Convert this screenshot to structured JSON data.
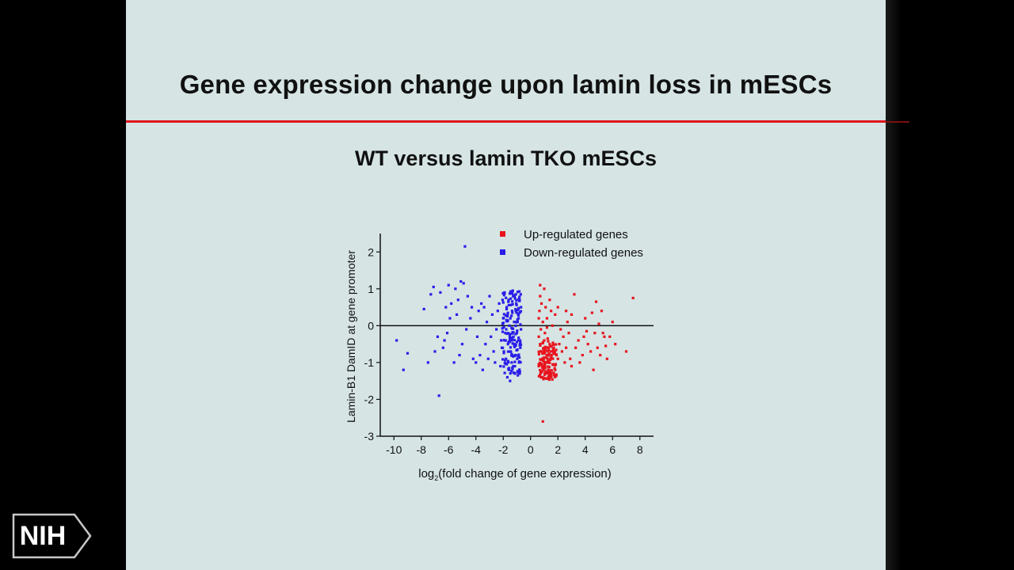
{
  "slide": {
    "title": "Gene expression change upon lamin loss in mESCs",
    "subtitle": "WT versus lamin TKO mESCs"
  },
  "logo": {
    "text": "NIH"
  },
  "chart_data": {
    "type": "scatter",
    "ylabel": "Lamin-B1 DamID at gene promoter",
    "xlabel_main": "log",
    "xlabel_sub": "2",
    "xlabel_rest": "(fold change of gene expression)",
    "xlim": [
      -11,
      9
    ],
    "ylim": [
      -3,
      2.5
    ],
    "xticks": [
      -10,
      -8,
      -6,
      -4,
      -2,
      0,
      2,
      4,
      6,
      8
    ],
    "yticks": [
      -3,
      -2,
      -1,
      0,
      1,
      2
    ],
    "legend_position": "top-right",
    "colors": {
      "up": "#e8141e",
      "down": "#2a1ee8"
    },
    "series": [
      {
        "name": "Up-regulated genes",
        "color_key": "up",
        "points": [
          [
            0.7,
            1.1
          ],
          [
            1.0,
            1.0
          ],
          [
            1.4,
            0.7
          ],
          [
            3.2,
            0.85
          ],
          [
            4.8,
            0.65
          ],
          [
            7.5,
            0.75
          ],
          [
            0.8,
            0.6
          ],
          [
            1.1,
            0.5
          ],
          [
            1.5,
            0.4
          ],
          [
            2.0,
            0.5
          ],
          [
            2.6,
            0.4
          ],
          [
            3.0,
            0.3
          ],
          [
            4.0,
            0.2
          ],
          [
            4.5,
            0.35
          ],
          [
            5.2,
            0.4
          ],
          [
            6.0,
            0.1
          ],
          [
            5.8,
            -0.3
          ],
          [
            7.0,
            -0.7
          ],
          [
            0.6,
            0.2
          ],
          [
            0.9,
            0.1
          ],
          [
            1.2,
            0.2
          ],
          [
            1.6,
            0.0
          ],
          [
            2.2,
            -0.1
          ],
          [
            2.8,
            -0.2
          ],
          [
            3.5,
            -0.4
          ],
          [
            4.2,
            -0.5
          ],
          [
            4.9,
            -0.6
          ],
          [
            5.5,
            -0.55
          ],
          [
            3.8,
            -0.8
          ],
          [
            4.6,
            -1.2
          ],
          [
            2.5,
            -1.0
          ],
          [
            3.0,
            -1.1
          ],
          [
            1.8,
            -1.2
          ],
          [
            1.3,
            -1.3
          ],
          [
            0.8,
            -1.4
          ],
          [
            0.9,
            -2.6
          ],
          [
            0.6,
            -0.3
          ],
          [
            0.7,
            -0.5
          ],
          [
            0.8,
            -0.7
          ],
          [
            0.9,
            -0.9
          ],
          [
            1.0,
            -0.4
          ],
          [
            1.1,
            -0.6
          ],
          [
            1.2,
            -0.8
          ],
          [
            1.3,
            -1.0
          ],
          [
            1.4,
            -0.5
          ],
          [
            1.5,
            -0.7
          ],
          [
            1.7,
            -0.6
          ],
          [
            1.9,
            -0.8
          ],
          [
            2.1,
            -0.5
          ],
          [
            2.3,
            -0.7
          ],
          [
            2.6,
            -0.6
          ],
          [
            3.3,
            -0.6
          ],
          [
            4.4,
            -0.7
          ],
          [
            5.1,
            -0.8
          ],
          [
            5.4,
            -0.3
          ],
          [
            4.7,
            -0.2
          ],
          [
            3.9,
            -0.3
          ],
          [
            0.65,
            0.4
          ],
          [
            0.75,
            -0.1
          ],
          [
            0.85,
            -1.1
          ],
          [
            0.95,
            -1.2
          ],
          [
            1.05,
            -0.2
          ],
          [
            1.25,
            -0.35
          ],
          [
            1.45,
            -0.9
          ],
          [
            1.65,
            -1.05
          ],
          [
            2.0,
            -0.9
          ],
          [
            2.4,
            -0.3
          ],
          [
            2.9,
            -0.9
          ],
          [
            3.6,
            -1.0
          ],
          [
            5.0,
            0.05
          ],
          [
            5.6,
            -0.9
          ],
          [
            6.2,
            -0.5
          ],
          [
            0.7,
            0.8
          ],
          [
            1.2,
            -0.05
          ],
          [
            1.8,
            0.3
          ],
          [
            2.7,
            0.1
          ],
          [
            4.1,
            -0.15
          ],
          [
            5.3,
            -0.2
          ]
        ]
      },
      {
        "name": "Down-regulated genes",
        "color_key": "down",
        "points": [
          [
            -4.8,
            2.15
          ],
          [
            -9.8,
            -0.4
          ],
          [
            -9.3,
            -1.2
          ],
          [
            -9.0,
            -0.75
          ],
          [
            -7.8,
            0.45
          ],
          [
            -7.0,
            -0.7
          ],
          [
            -6.7,
            -1.9
          ],
          [
            -6.3,
            -0.4
          ],
          [
            -6.0,
            1.1
          ],
          [
            -5.5,
            1.0
          ],
          [
            -5.1,
            1.2
          ],
          [
            -4.9,
            1.15
          ],
          [
            -6.6,
            0.9
          ],
          [
            -7.3,
            0.85
          ],
          [
            -7.1,
            1.05
          ],
          [
            -6.1,
            -0.2
          ],
          [
            -5.8,
            0.6
          ],
          [
            -5.4,
            0.3
          ],
          [
            -5.0,
            -0.5
          ],
          [
            -4.6,
            0.8
          ],
          [
            -4.2,
            -0.9
          ],
          [
            -3.8,
            0.4
          ],
          [
            -3.5,
            -1.2
          ],
          [
            -3.2,
            0.1
          ],
          [
            -2.9,
            -0.3
          ],
          [
            -2.6,
            -1.0
          ],
          [
            -2.3,
            0.6
          ],
          [
            -2.1,
            -0.6
          ],
          [
            -1.9,
            0.9
          ],
          [
            -1.7,
            -1.4
          ],
          [
            -1.5,
            -1.5
          ],
          [
            -1.3,
            0.95
          ],
          [
            -1.1,
            -0.8
          ],
          [
            -0.9,
            0.3
          ],
          [
            -0.8,
            -1.3
          ],
          [
            -0.7,
            0.5
          ],
          [
            -1.0,
            -0.2
          ],
          [
            -1.2,
            0.1
          ],
          [
            -1.4,
            -0.4
          ],
          [
            -1.6,
            0.7
          ],
          [
            -1.8,
            -0.9
          ],
          [
            -2.0,
            0.2
          ],
          [
            -2.2,
            -1.1
          ],
          [
            -2.4,
            0.4
          ],
          [
            -2.7,
            -0.7
          ],
          [
            -3.0,
            0.8
          ],
          [
            -3.3,
            -0.5
          ],
          [
            -3.6,
            0.6
          ],
          [
            -3.9,
            -0.3
          ],
          [
            -4.4,
            0.2
          ],
          [
            -4.0,
            -1.0
          ],
          [
            -5.2,
            -0.8
          ],
          [
            -5.6,
            -1.0
          ],
          [
            -6.4,
            -0.6
          ],
          [
            -6.8,
            -0.3
          ],
          [
            -7.5,
            -1.0
          ],
          [
            -5.9,
            0.2
          ],
          [
            -4.7,
            -0.1
          ],
          [
            -4.3,
            0.5
          ],
          [
            -3.7,
            -0.8
          ],
          [
            -0.7,
            -0.1
          ],
          [
            -0.75,
            -0.6
          ],
          [
            -0.8,
            0.7
          ],
          [
            -0.85,
            -1.0
          ],
          [
            -0.9,
            -0.4
          ],
          [
            -0.95,
            0.1
          ],
          [
            -1.05,
            0.6
          ],
          [
            -1.15,
            -1.1
          ],
          [
            -1.25,
            -0.3
          ],
          [
            -1.35,
            0.4
          ],
          [
            -1.45,
            -0.7
          ],
          [
            -1.55,
            0.0
          ],
          [
            -1.65,
            -0.5
          ],
          [
            -1.75,
            0.5
          ],
          [
            -1.85,
            -0.2
          ],
          [
            -1.95,
            -0.7
          ],
          [
            -2.05,
            0.7
          ],
          [
            -2.15,
            -0.4
          ],
          [
            -2.5,
            -0.1
          ],
          [
            -2.8,
            0.3
          ],
          [
            -3.1,
            -0.9
          ],
          [
            -3.4,
            0.5
          ],
          [
            -0.72,
            0.85
          ],
          [
            -0.78,
            -1.25
          ],
          [
            -0.88,
            0.2
          ],
          [
            -0.98,
            -0.9
          ],
          [
            -1.08,
            0.4
          ],
          [
            -1.18,
            -0.5
          ],
          [
            -1.28,
            0.8
          ],
          [
            -1.38,
            -1.0
          ],
          [
            -1.48,
            0.2
          ],
          [
            -1.58,
            -1.2
          ],
          [
            -1.68,
            0.3
          ],
          [
            -1.78,
            -0.1
          ],
          [
            -5.3,
            0.7
          ],
          [
            -6.2,
            0.5
          ]
        ]
      }
    ]
  }
}
